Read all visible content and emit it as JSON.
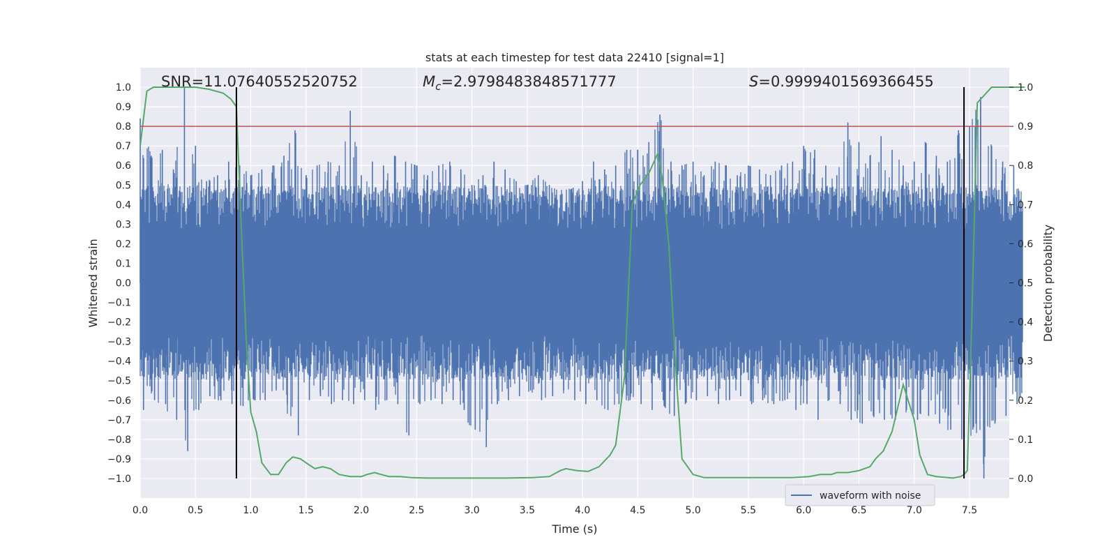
{
  "chart_data": {
    "type": "line",
    "title": "stats at each timestep for test data 22410 [signal=1]",
    "xlabel": "Time (s)",
    "ylabel": "Whitened strain",
    "y2label": "Detection probability",
    "xlim": [
      0,
      8.0
    ],
    "ylim": [
      -1.1,
      1.1
    ],
    "y2lim": [
      -0.05,
      1.05
    ],
    "xticks": [
      "0.0",
      "0.5",
      "1.0",
      "1.5",
      "2.0",
      "2.5",
      "3.0",
      "3.5",
      "4.0",
      "4.5",
      "5.0",
      "5.5",
      "6.0",
      "6.5",
      "7.0",
      "7.5"
    ],
    "xtick_values": [
      0,
      0.5,
      1.0,
      1.5,
      2.0,
      2.5,
      3.0,
      3.5,
      4.0,
      4.5,
      5.0,
      5.5,
      6.0,
      6.5,
      7.0,
      7.5
    ],
    "yticks": [
      "1.0",
      "0.9",
      "0.8",
      "0.7",
      "0.6",
      "0.5",
      "0.4",
      "0.3",
      "0.2",
      "0.1",
      "0.0",
      "−0.1",
      "−0.2",
      "−0.3",
      "−0.4",
      "−0.5",
      "−0.6",
      "−0.7",
      "−0.8",
      "−0.9",
      "−1.0"
    ],
    "ytick_values": [
      1.0,
      0.9,
      0.8,
      0.7,
      0.6,
      0.5,
      0.4,
      0.3,
      0.2,
      0.1,
      0.0,
      -0.1,
      -0.2,
      -0.3,
      -0.4,
      -0.5,
      -0.6,
      -0.7,
      -0.8,
      -0.9,
      -1.0
    ],
    "y2ticks": [
      "1.0",
      "0.9",
      "0.8",
      "0.7",
      "0.6",
      "0.5",
      "0.4",
      "0.3",
      "0.2",
      "0.1",
      "0.0"
    ],
    "y2tick_values": [
      1.0,
      0.9,
      0.8,
      0.7,
      0.6,
      0.5,
      0.4,
      0.3,
      0.2,
      0.1,
      0.0
    ],
    "annotations": {
      "snr": "SNR=11.07640552520752",
      "mc_symbol": "M",
      "mc_sub": "c",
      "mc_value": "=2.9798483848571777",
      "s_symbol": "S",
      "s_value": "=0.9999401569366455"
    },
    "threshold": {
      "value": 0.9,
      "axis": "y2",
      "color": "#c44e52"
    },
    "vlines": [
      0.87,
      7.45
    ],
    "legend": {
      "label": "waveform with noise",
      "position": "lower-right"
    },
    "series": [
      {
        "name": "waveform with noise",
        "axis": "y",
        "color": "#4c72b0",
        "envelope_note": "dense noisy strain; plotted as min/max envelope samples",
        "x": [
          0.0,
          0.1,
          0.2,
          0.3,
          0.4,
          0.5,
          0.6,
          0.7,
          0.8,
          0.9,
          1.0,
          1.1,
          1.2,
          1.3,
          1.4,
          1.5,
          1.6,
          1.7,
          1.8,
          1.9,
          2.0,
          2.1,
          2.2,
          2.3,
          2.4,
          2.5,
          2.6,
          2.7,
          2.8,
          2.9,
          3.0,
          3.1,
          3.2,
          3.3,
          3.4,
          3.5,
          3.6,
          3.7,
          3.8,
          3.9,
          4.0,
          4.1,
          4.2,
          4.3,
          4.4,
          4.5,
          4.6,
          4.7,
          4.8,
          4.9,
          5.0,
          5.1,
          5.2,
          5.3,
          5.4,
          5.5,
          5.6,
          5.7,
          5.8,
          5.9,
          6.0,
          6.1,
          6.2,
          6.3,
          6.4,
          6.5,
          6.6,
          6.7,
          6.8,
          6.9,
          7.0,
          7.1,
          7.2,
          7.3,
          7.4,
          7.5,
          7.6,
          7.7,
          7.8,
          7.9,
          8.0
        ],
        "upper": [
          0.84,
          0.65,
          0.68,
          0.58,
          1.0,
          0.7,
          0.52,
          0.55,
          0.62,
          0.6,
          0.55,
          0.58,
          0.6,
          0.65,
          0.78,
          0.55,
          0.6,
          0.62,
          0.6,
          0.88,
          0.55,
          0.62,
          0.6,
          0.65,
          0.62,
          0.6,
          0.55,
          0.6,
          0.62,
          0.58,
          0.5,
          0.55,
          0.62,
          0.58,
          0.52,
          0.5,
          0.55,
          0.5,
          0.45,
          0.48,
          0.52,
          0.62,
          0.58,
          0.6,
          0.68,
          0.68,
          0.72,
          0.86,
          0.62,
          0.6,
          0.62,
          0.55,
          0.62,
          0.6,
          0.55,
          0.6,
          0.58,
          0.55,
          0.6,
          0.62,
          0.7,
          0.68,
          0.6,
          0.55,
          0.82,
          0.72,
          0.65,
          0.75,
          0.68,
          0.6,
          0.62,
          0.72,
          0.65,
          0.62,
          0.78,
          0.8,
          0.95,
          0.7,
          0.62,
          0.6,
          0.55
        ],
        "lower": [
          -0.65,
          -0.6,
          -0.62,
          -0.7,
          -0.86,
          -0.65,
          -0.58,
          -0.6,
          -0.62,
          -0.63,
          -0.6,
          -0.6,
          -0.55,
          -0.62,
          -0.78,
          -0.6,
          -0.58,
          -0.62,
          -0.6,
          -0.62,
          -0.6,
          -0.65,
          -0.6,
          -0.62,
          -0.78,
          -0.62,
          -0.6,
          -0.62,
          -0.6,
          -0.65,
          -0.75,
          -0.84,
          -0.62,
          -0.6,
          -0.58,
          -0.55,
          -0.6,
          -0.58,
          -0.55,
          -0.6,
          -0.62,
          -0.6,
          -0.65,
          -0.62,
          -0.6,
          -0.62,
          -0.65,
          -0.6,
          -0.68,
          -0.62,
          -0.6,
          -0.58,
          -0.62,
          -0.6,
          -0.58,
          -0.62,
          -0.6,
          -0.62,
          -0.6,
          -0.65,
          -0.62,
          -0.7,
          -0.6,
          -0.62,
          -0.7,
          -0.72,
          -0.68,
          -0.7,
          -0.7,
          -0.65,
          -0.7,
          -0.68,
          -0.72,
          -0.75,
          -0.8,
          -0.75,
          -1.0,
          -0.72,
          -0.68,
          -0.62,
          -0.6
        ]
      },
      {
        "name": "Detection probability",
        "axis": "y2",
        "color": "#55a868",
        "x": [
          0.0,
          0.06,
          0.12,
          0.25,
          0.5,
          0.62,
          0.75,
          0.82,
          0.87,
          0.92,
          0.96,
          1.0,
          1.05,
          1.1,
          1.18,
          1.25,
          1.32,
          1.38,
          1.45,
          1.5,
          1.58,
          1.65,
          1.72,
          1.8,
          1.9,
          2.0,
          2.05,
          2.12,
          2.18,
          2.25,
          2.35,
          2.45,
          2.6,
          2.8,
          3.0,
          3.3,
          3.55,
          3.7,
          3.8,
          3.85,
          3.95,
          4.05,
          4.15,
          4.2,
          4.25,
          4.3,
          4.38,
          4.45,
          4.52,
          4.6,
          4.68,
          4.72,
          4.78,
          4.85,
          4.9,
          5.0,
          5.1,
          5.5,
          5.9,
          6.05,
          6.15,
          6.25,
          6.3,
          6.4,
          6.5,
          6.6,
          6.65,
          6.72,
          6.8,
          6.9,
          7.0,
          7.05,
          7.12,
          7.2,
          7.35,
          7.42,
          7.45,
          7.48,
          7.52,
          7.57,
          7.7,
          7.85,
          8.0
        ],
        "y": [
          0.85,
          0.99,
          1.0,
          1.0,
          1.0,
          0.995,
          0.985,
          0.97,
          0.95,
          0.6,
          0.35,
          0.17,
          0.12,
          0.04,
          0.01,
          0.01,
          0.04,
          0.055,
          0.05,
          0.04,
          0.025,
          0.03,
          0.025,
          0.01,
          0.005,
          0.005,
          0.01,
          0.015,
          0.01,
          0.005,
          0.005,
          0.002,
          0.001,
          0.001,
          0.001,
          0.001,
          0.002,
          0.005,
          0.02,
          0.025,
          0.02,
          0.018,
          0.03,
          0.045,
          0.06,
          0.085,
          0.26,
          0.7,
          0.75,
          0.78,
          0.83,
          0.77,
          0.6,
          0.25,
          0.05,
          0.01,
          0.002,
          0.002,
          0.002,
          0.005,
          0.01,
          0.01,
          0.015,
          0.015,
          0.02,
          0.03,
          0.05,
          0.07,
          0.12,
          0.24,
          0.15,
          0.06,
          0.01,
          0.005,
          0.001,
          0.005,
          0.01,
          0.02,
          0.4,
          0.96,
          1.0,
          1.0,
          1.0
        ]
      }
    ]
  }
}
